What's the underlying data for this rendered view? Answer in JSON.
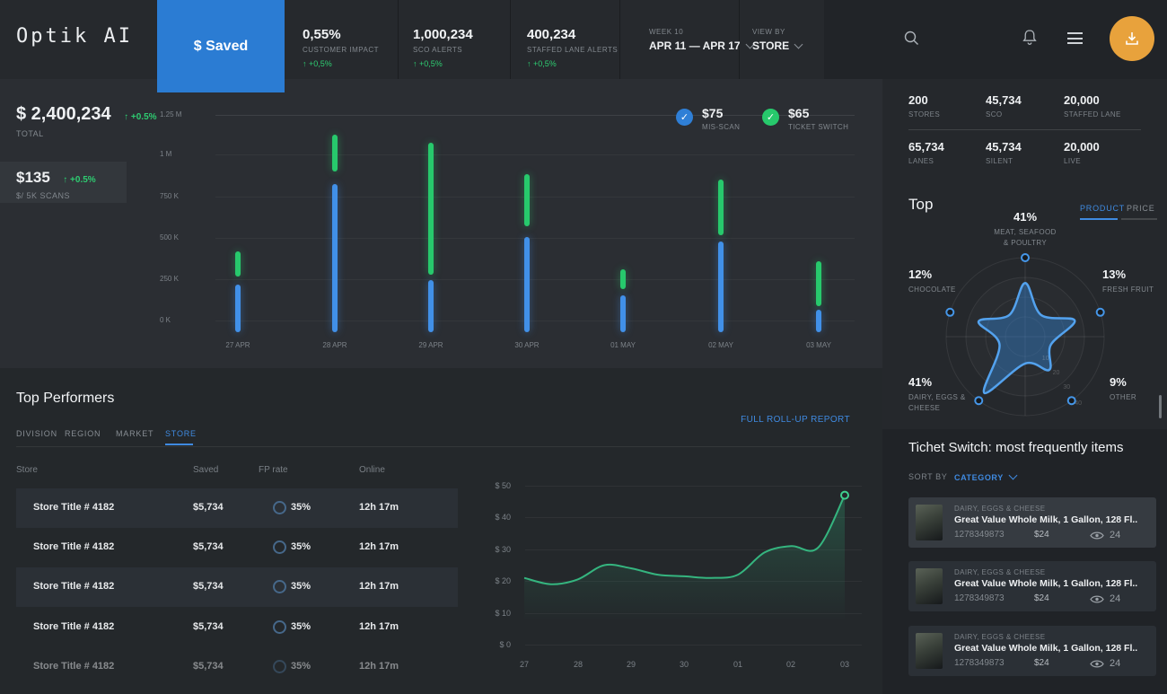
{
  "colors": {
    "accent_blue": "#2b7cd3",
    "bar_blue": "#4190e8",
    "green": "#27c96c",
    "delta_green": "#2ecc71",
    "orange": "#e8a23c",
    "link_blue": "#3f8ae0"
  },
  "brand": {
    "logo": "Optik AI"
  },
  "header": {
    "tab": "$ Saved",
    "stats": [
      {
        "value": "0,55%",
        "label": "CUSTOMER IMPACT",
        "delta": "↑ +0,5%"
      },
      {
        "value": "1,000,234",
        "label": "SCO ALERTS",
        "delta": "↑ +0,5%"
      },
      {
        "value": "400,234",
        "label": "STAFFED LANE ALERTS",
        "delta": "↑ +0,5%"
      }
    ],
    "week": {
      "label": "WEEK 10",
      "value": "APR 11 — APR 17"
    },
    "view_by": {
      "label": "VIEW BY",
      "value": "STORE"
    }
  },
  "kpi": {
    "total": {
      "value": "$ 2,400,234",
      "delta": "↑ +0.5%",
      "label": "TOTAL"
    },
    "per_scans": {
      "value": "$135",
      "delta": "↑ +0.5%",
      "label": "$/ 5K SCANS"
    }
  },
  "legend": [
    {
      "value": "$75",
      "label": "MIS-SCAN",
      "check": "✓"
    },
    {
      "value": "$65",
      "label": "TICKET SWITCH",
      "check": "✓"
    }
  ],
  "chart_data": [
    {
      "type": "bar",
      "title": "Savings by day",
      "categories": [
        "27 APR",
        "28 APR",
        "29 APR",
        "30 APR",
        "01 MAY",
        "02 MAY",
        "03 MAY"
      ],
      "yticks": [
        "1.25 M",
        "1 M",
        "750 K",
        "500 K",
        "250 K",
        "0 K"
      ],
      "ylim": [
        0,
        1250000
      ],
      "series": [
        {
          "name": "MIS-SCAN",
          "color": "#4190e8",
          "values": [
            275000,
            850000,
            300000,
            550000,
            210000,
            520000,
            130000
          ]
        },
        {
          "name": "TICKET SWITCH",
          "color": "#27c96c",
          "ranges": [
            [
              320000,
              465000
            ],
            [
              925000,
              1135000
            ],
            [
              330000,
              1090000
            ],
            [
              610000,
              910000
            ],
            [
              250000,
              360000
            ],
            [
              560000,
              880000
            ],
            [
              150000,
              410000
            ]
          ]
        }
      ]
    },
    {
      "type": "area",
      "color": "#35b57f",
      "x": [
        27,
        27.5,
        28,
        28.5,
        29,
        29.5,
        30,
        30.5,
        31,
        31.5,
        32,
        32.5,
        33
      ],
      "values": [
        21,
        19,
        20.5,
        25,
        24,
        22,
        21.5,
        21,
        22,
        29,
        31,
        30.5,
        47
      ],
      "xticklabels": [
        "27",
        "28",
        "29",
        "30",
        "01",
        "02",
        "03"
      ],
      "yticks": [
        "$ 50",
        "$ 40",
        "$ 30",
        "$ 20",
        "$ 10",
        "$ 0"
      ],
      "ylim": [
        0,
        50
      ]
    },
    {
      "type": "radar",
      "color": "#53a2ee",
      "axes": [
        {
          "pct": "41%",
          "line1": "MEAT, SEAFOOD",
          "line2": "& POULTRY"
        },
        {
          "pct": "13%",
          "line1": "FRESH FRUIT",
          "line2": ""
        },
        {
          "pct": "9%",
          "line1": "OTHER",
          "line2": ""
        },
        {
          "pct": "41%",
          "line1": "DAIRY, EGGS &",
          "line2": "CHEESE"
        },
        {
          "pct": "12%",
          "line1": "CHOCOLATE",
          "line2": ""
        }
      ],
      "shape_fractions": [
        0.68,
        0.66,
        0.52,
        0.88,
        0.62
      ],
      "ring_labels": [
        "10",
        "20",
        "30",
        "40"
      ]
    }
  ],
  "right_stats": [
    {
      "value": "200",
      "label": "STORES"
    },
    {
      "value": "45,734",
      "label": "SCO"
    },
    {
      "value": "20,000",
      "label": "STAFFED LANE"
    },
    {
      "value": "65,734",
      "label": "LANES"
    },
    {
      "value": "45,734",
      "label": "SILENT"
    },
    {
      "value": "20,000",
      "label": "LIVE"
    }
  ],
  "top_section": {
    "title": "Top",
    "tabs": [
      "PRODUCT",
      "PRICE"
    ],
    "active_tab": "PRODUCT"
  },
  "performers": {
    "title": "Top Performers",
    "tabs": [
      "DIVISION",
      "REGION",
      "MARKET",
      "STORE"
    ],
    "active_tab": "STORE",
    "report_link": "FULL ROLL-UP REPORT",
    "columns": [
      "Store",
      "Saved",
      "FP rate",
      "Online"
    ],
    "rows": [
      {
        "store": "Store Title # 4182",
        "saved": "$5,734",
        "fp_rate": "35%",
        "online": "12h 17m"
      },
      {
        "store": "Store Title # 4182",
        "saved": "$5,734",
        "fp_rate": "35%",
        "online": "12h 17m"
      },
      {
        "store": "Store Title # 4182",
        "saved": "$5,734",
        "fp_rate": "35%",
        "online": "12h 17m"
      },
      {
        "store": "Store Title # 4182",
        "saved": "$5,734",
        "fp_rate": "35%",
        "online": "12h 17m"
      },
      {
        "store": "Store Title # 4182",
        "saved": "$5,734",
        "fp_rate": "35%",
        "online": "12h 17m"
      }
    ]
  },
  "ticket": {
    "title": "Tichet Switch: most frequently items",
    "sort_by_label": "SORT BY",
    "sort_value": "CATEGORY",
    "items": [
      {
        "category": "DAIRY, EGGS & CHEESE",
        "title": "Great Value Whole Milk, 1 Gallon, 128 Fl..",
        "sku": "1278349873",
        "price": "$24",
        "views": "24"
      },
      {
        "category": "DAIRY, EGGS & CHEESE",
        "title": "Great Value Whole Milk, 1 Gallon, 128 Fl..",
        "sku": "1278349873",
        "price": "$24",
        "views": "24"
      },
      {
        "category": "DAIRY, EGGS & CHEESE",
        "title": "Great Value Whole Milk, 1 Gallon, 128 Fl..",
        "sku": "1278349873",
        "price": "$24",
        "views": "24"
      }
    ]
  }
}
